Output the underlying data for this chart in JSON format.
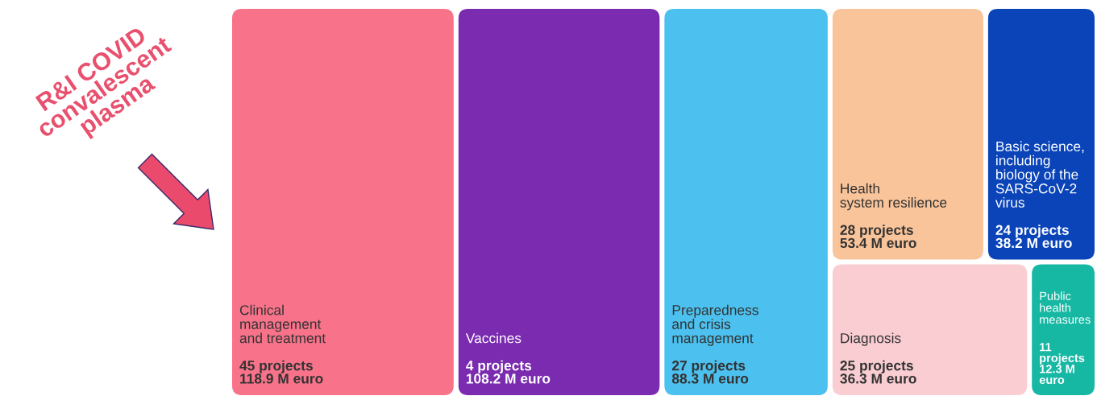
{
  "chart_data": {
    "type": "other",
    "categories": [
      "Clinical\nmanagement\nand treatment",
      "Vaccines",
      "Preparedness\nand crisis\nmanagement",
      "Health\nsystem resilience",
      "Basic science,\nincluding\nbiology of the\nSARS-CoV-2\nvirus",
      "Diagnosis",
      "Public\nhealth\nmeasures"
    ],
    "values": [
      118.9,
      108.2,
      88.3,
      53.4,
      38.2,
      36.3,
      12.3
    ],
    "value_labels": [
      "45 projects\n118.9 M euro",
      "4 projects\n108.2 M euro",
      "27 projects\n88.3 M euro",
      "28 projects\n53.4 M euro",
      "24 projects\n38.2 M euro",
      "25 projects\n36.3 M euro",
      "11\nprojects\n12.3 M\neuro"
    ],
    "colors": [
      "#f8738a",
      "#7a2bb0",
      "#4cc0ee",
      "#f9c49a",
      "#0a44b8",
      "#f9cdd2",
      "#16b8a4"
    ],
    "annotations": [
      "R&I COVID\nconvalescent\nplasma"
    ]
  }
}
